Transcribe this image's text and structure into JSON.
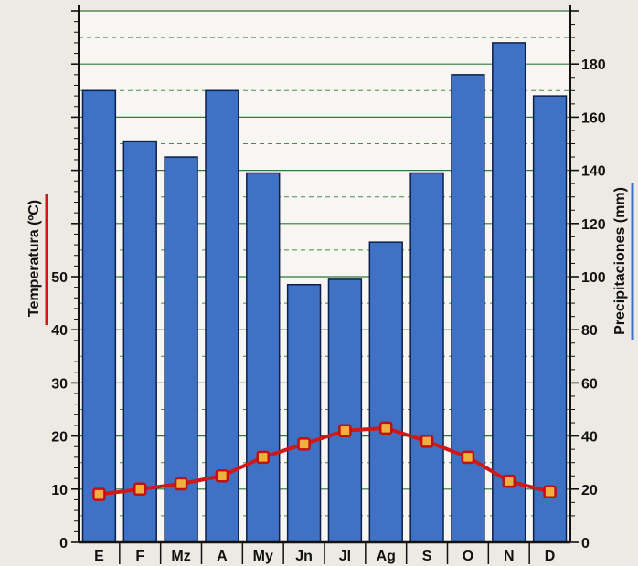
{
  "chart_data": {
    "type": "bar+line",
    "categories": [
      "E",
      "F",
      "Mz",
      "A",
      "My",
      "Jn",
      "Jl",
      "Ag",
      "S",
      "O",
      "N",
      "D"
    ],
    "series": [
      {
        "axis": "right",
        "type": "bar",
        "values": [
          170,
          151,
          145,
          170,
          139,
          97,
          99,
          113,
          139,
          176,
          188,
          168
        ],
        "color": "#3f72c4"
      },
      {
        "axis": "left",
        "type": "line",
        "values": [
          9,
          10,
          11,
          12.5,
          16,
          18.5,
          21,
          21.5,
          19,
          16,
          11.5,
          9.5
        ],
        "color": "#d01818"
      }
    ],
    "left_axis": {
      "label": "Temperatura (ºC)",
      "ticks": [
        0,
        10,
        20,
        30,
        40,
        50
      ],
      "range": [
        0,
        100
      ],
      "label_color": "#d01818"
    },
    "right_axis": {
      "label": "Precipitaciones (mm)",
      "ticks": [
        0,
        20,
        40,
        60,
        80,
        100,
        120,
        140,
        160,
        180
      ],
      "range": [
        0,
        200
      ],
      "label_color": "#3f72c4"
    },
    "grid": true,
    "legend": "none"
  }
}
